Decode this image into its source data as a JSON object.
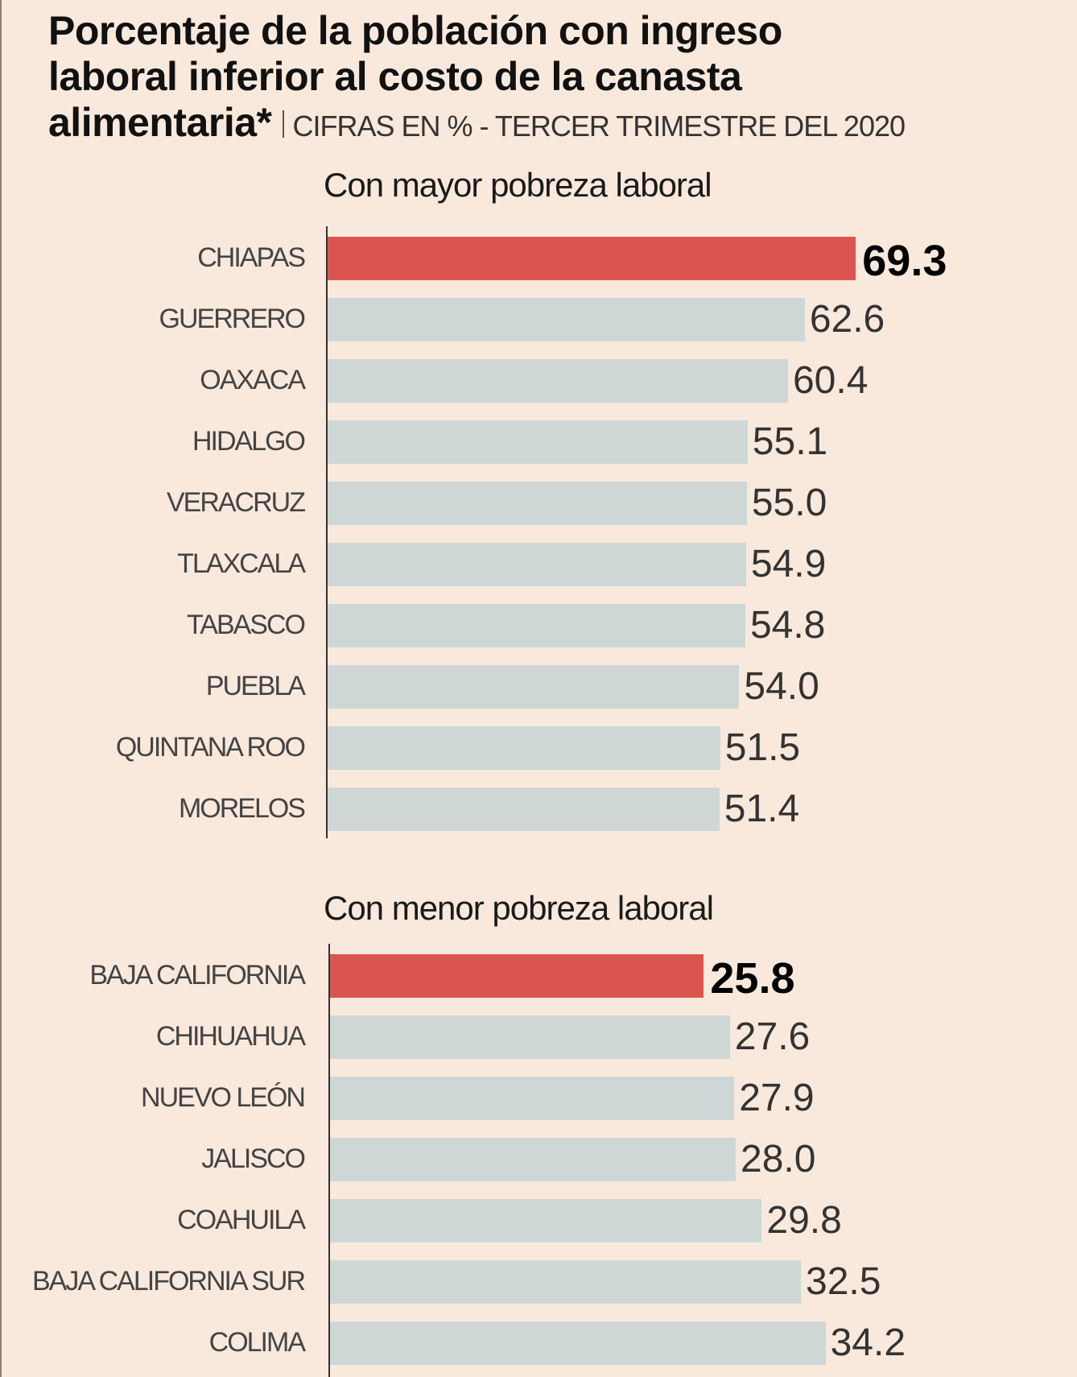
{
  "title": {
    "line1": "Porcentaje de la población con ingreso",
    "line2": "laboral inferior al costo de la canasta",
    "line3": "alimentaria*",
    "subtitle": "CIFRAS EN % - TERCER TRIMESTRE DEL 2020"
  },
  "colors": {
    "highlight": "#dc5450",
    "bar": "#cfd7d6",
    "background": "#f9e9dc"
  },
  "chart_data": [
    {
      "type": "bar",
      "orientation": "horizontal",
      "title": "Con mayor pobreza laboral",
      "categories": [
        "CHIAPAS",
        "GUERRERO",
        "OAXACA",
        "HIDALGO",
        "VERACRUZ",
        "TLAXCALA",
        "TABASCO",
        "PUEBLA",
        "QUINTANA ROO",
        "MORELOS"
      ],
      "values": [
        69.3,
        62.6,
        60.4,
        55.1,
        55.0,
        54.9,
        54.8,
        54.0,
        51.5,
        51.4
      ],
      "labels": [
        "69.3",
        "62.6",
        "60.4",
        "55.1",
        "55.0",
        "54.9",
        "54.8",
        "54.0",
        "51.5",
        "51.4"
      ],
      "highlight_index": 0
    },
    {
      "type": "bar",
      "orientation": "horizontal",
      "title": "Con menor pobreza laboral",
      "categories": [
        "BAJA CALIFORNIA",
        "CHIHUAHUA",
        "NUEVO LEÓN",
        "JALISCO",
        "COAHUILA",
        "BAJA CALIFORNIA SUR",
        "COLIMA"
      ],
      "values": [
        25.8,
        27.6,
        27.9,
        28.0,
        29.8,
        32.5,
        34.2
      ],
      "labels": [
        "25.8",
        "27.6",
        "27.9",
        "28.0",
        "29.8",
        "32.5",
        "34.2"
      ],
      "highlight_index": 0
    }
  ]
}
